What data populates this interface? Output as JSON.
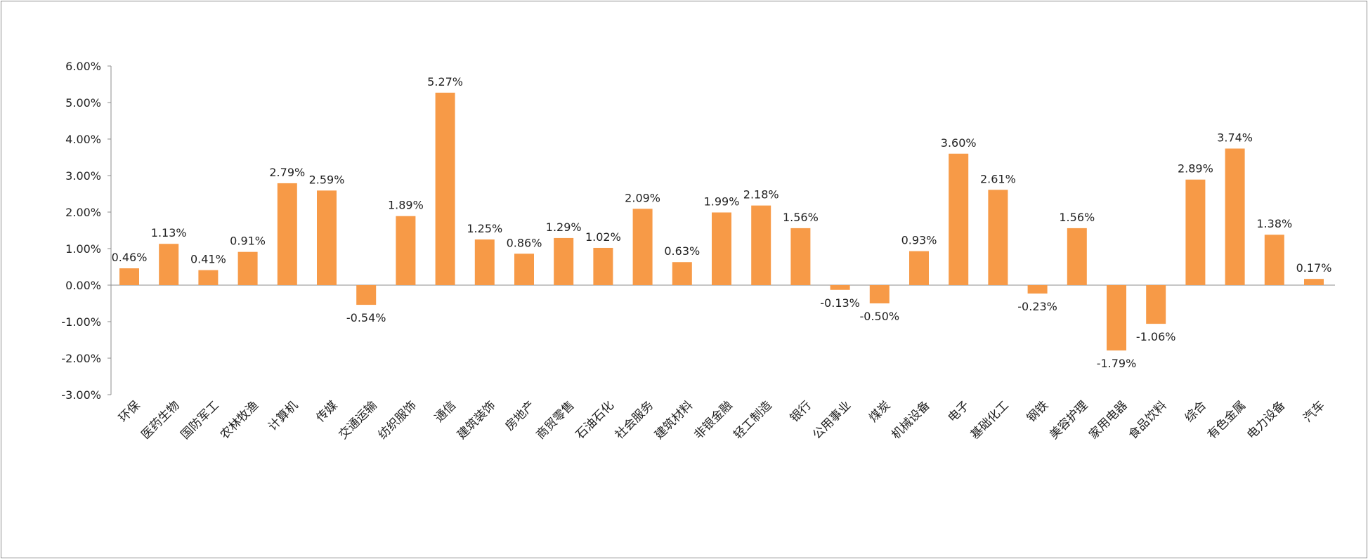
{
  "chart_data": {
    "type": "bar",
    "title": "",
    "xlabel": "",
    "ylabel": "",
    "ylim": [
      -3.0,
      6.0
    ],
    "yticks": [
      6.0,
      5.0,
      4.0,
      3.0,
      2.0,
      1.0,
      0.0,
      -1.0,
      -2.0,
      -3.0
    ],
    "ytick_labels": [
      "6.00%",
      "5.00%",
      "4.00%",
      "3.00%",
      "2.00%",
      "1.00%",
      "0.00%",
      "-1.00%",
      "-2.00%",
      "-3.00%"
    ],
    "bar_color": "#F79A47",
    "grid": false,
    "legend": "none",
    "categories": [
      "环保",
      "医药生物",
      "国防军工",
      "农林牧渔",
      "计算机",
      "传媒",
      "交通运输",
      "纺织服饰",
      "通信",
      "建筑装饰",
      "房地产",
      "商贸零售",
      "石油石化",
      "社会服务",
      "建筑材料",
      "非银金融",
      "轻工制造",
      "银行",
      "公用事业",
      "煤炭",
      "机械设备",
      "电子",
      "基础化工",
      "钢铁",
      "美容护理",
      "家用电器",
      "食品饮料",
      "综合",
      "有色金属",
      "电力设备",
      "汽车"
    ],
    "values": [
      0.46,
      1.13,
      0.41,
      0.91,
      2.79,
      2.59,
      -0.54,
      1.89,
      5.27,
      1.25,
      0.86,
      1.29,
      1.02,
      2.09,
      0.63,
      1.99,
      2.18,
      1.56,
      -0.13,
      -0.5,
      0.93,
      3.6,
      2.61,
      -0.23,
      1.56,
      -1.79,
      -1.06,
      2.89,
      3.74,
      1.38,
      0.17
    ],
    "data_labels": [
      "0.46%",
      "1.13%",
      "0.41%",
      "0.91%",
      "2.79%",
      "2.59%",
      "-0.54%",
      "1.89%",
      "5.27%",
      "1.25%",
      "0.86%",
      "1.29%",
      "1.02%",
      "2.09%",
      "0.63%",
      "1.99%",
      "2.18%",
      "1.56%",
      "-0.13%",
      "-0.50%",
      "0.93%",
      "3.60%",
      "2.61%",
      "-0.23%",
      "1.56%",
      "-1.79%",
      "-1.06%",
      "2.89%",
      "3.74%",
      "1.38%",
      "0.17%"
    ]
  }
}
